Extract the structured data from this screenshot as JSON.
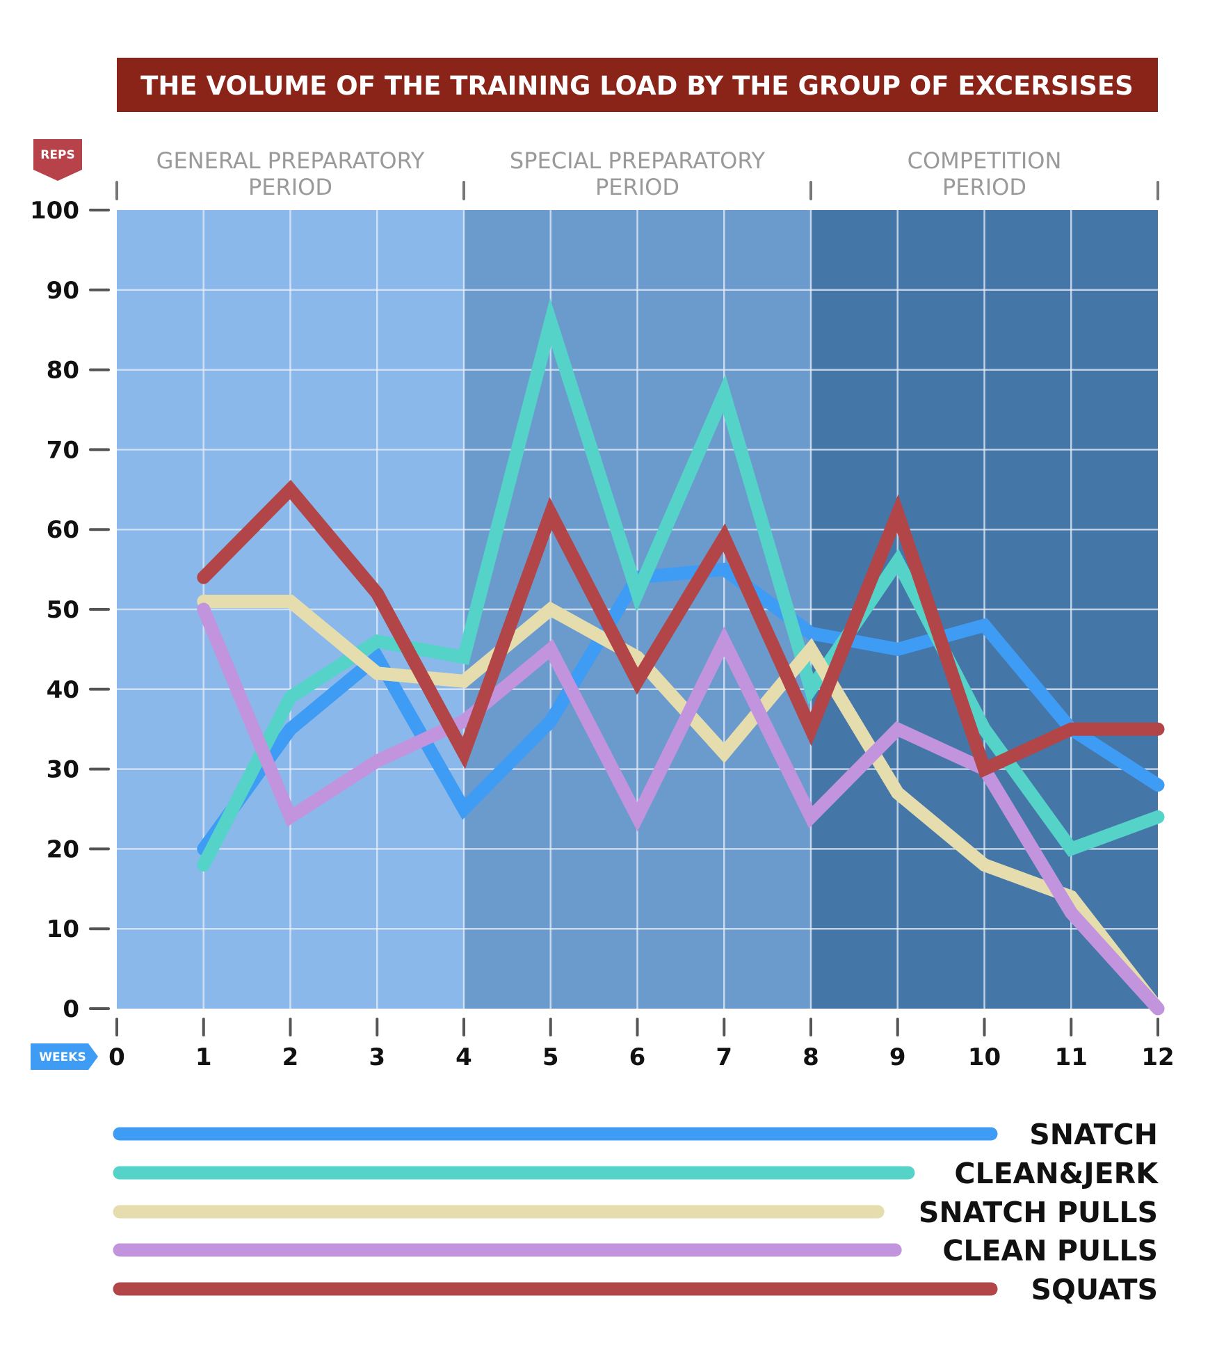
{
  "chart_data": {
    "type": "line",
    "title": "THE VOLUME OF THE TRAINING LOAD BY THE GROUP OF EXCERSISES",
    "ylabel": "REPS",
    "xlabel": "WEEKS",
    "ylim": [
      0,
      100
    ],
    "xlim": [
      0,
      12
    ],
    "y_ticks": [
      "0",
      "10",
      "20",
      "30",
      "40",
      "50",
      "60",
      "70",
      "80",
      "90",
      "100"
    ],
    "x_ticks": [
      "0",
      "1",
      "2",
      "3",
      "4",
      "5",
      "6",
      "7",
      "8",
      "9",
      "10",
      "11",
      "12"
    ],
    "grid": true,
    "legend_position": "bottom",
    "periods": [
      {
        "label_line1": "GENERAL PREPARATORY",
        "label_line2": "PERIOD",
        "start": 0,
        "end": 4,
        "color": "#8ab8ea"
      },
      {
        "label_line1": "SPECIAL PREPARATORY",
        "label_line2": "PERIOD",
        "start": 4,
        "end": 8,
        "color": "#6b9acd"
      },
      {
        "label_line1": "COMPETITION",
        "label_line2": "PERIOD",
        "start": 8,
        "end": 12,
        "color": "#4576a8"
      }
    ],
    "series": [
      {
        "name": "SNATCH",
        "color": "#3f9cf4",
        "legend_extent": 1.0,
        "x": [
          1,
          2,
          3,
          4,
          5,
          6,
          7,
          8,
          9,
          10,
          11,
          12
        ],
        "y": [
          20,
          35,
          44,
          25,
          36,
          54,
          55,
          47,
          45,
          48,
          35,
          28
        ]
      },
      {
        "name": "CLEAN&JERK",
        "color": "#55d3c8",
        "legend_extent": 0.905,
        "x": [
          1,
          2,
          3,
          4,
          5,
          6,
          7,
          8,
          9,
          10,
          11,
          12
        ],
        "y": [
          18,
          39,
          46,
          44,
          86,
          52,
          77,
          40,
          56,
          35,
          20,
          24
        ]
      },
      {
        "name": "SNATCH PULLS",
        "color": "#e6ddae",
        "legend_extent": 0.87,
        "x": [
          1,
          2,
          3,
          4,
          5,
          6,
          7,
          8,
          9,
          10,
          11,
          12
        ],
        "y": [
          51,
          51,
          42,
          41,
          50,
          44,
          32,
          45,
          27,
          18,
          14,
          0
        ]
      },
      {
        "name": "CLEAN PULLS",
        "color": "#c194dd",
        "legend_extent": 0.89,
        "x": [
          1,
          2,
          3,
          4,
          5,
          6,
          7,
          8,
          9,
          10,
          11,
          12
        ],
        "y": [
          50,
          24,
          31,
          36,
          45,
          24,
          46,
          24,
          35,
          30,
          12,
          0
        ]
      },
      {
        "name": "SQUATS",
        "color": "#b24548",
        "legend_extent": 1.0,
        "x": [
          1,
          2,
          3,
          4,
          5,
          6,
          7,
          8,
          9,
          10,
          11,
          12
        ],
        "y": [
          54,
          65,
          52,
          32,
          62,
          41,
          59,
          35,
          62,
          30,
          35,
          35
        ]
      }
    ]
  },
  "colors": {
    "title_bar": "#8b2418",
    "reps_badge": "#b8424a",
    "weeks_badge": "#3f9cf4",
    "grid": "#e8eef8",
    "period_text": "#9a9a9a"
  }
}
